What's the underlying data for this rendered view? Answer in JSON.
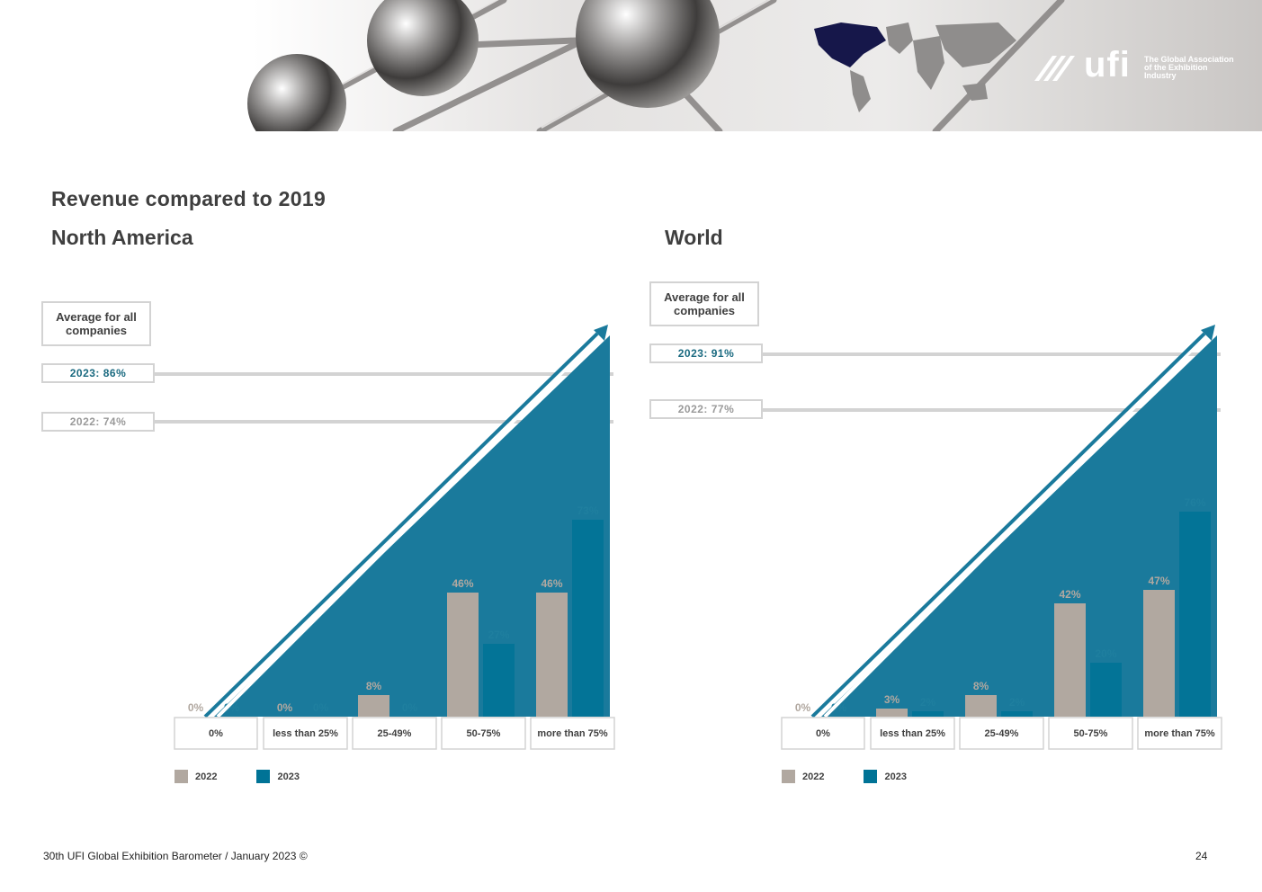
{
  "branding": {
    "logo_word": "ufi",
    "logo_tagline": "The Global Association of the Exhibition Industry"
  },
  "page": {
    "title": "Revenue compared to 2019",
    "footer": "30th UFI Global Exhibition Barometer / January 2023 ©",
    "page_number": "24"
  },
  "colors": {
    "series_2022": "#b1a8a0",
    "series_2023": "#007396",
    "triangle": "#1a7a9c"
  },
  "panels": [
    {
      "title": "North America",
      "average_label": "Average for all companies",
      "avg_2023_label": "2023: 86%",
      "avg_2022_label": "2022: 74%"
    },
    {
      "title": "World",
      "average_label": "Average for all companies",
      "avg_2023_label": "2023: 91%",
      "avg_2022_label": "2022: 77%"
    }
  ],
  "chart_data": [
    {
      "type": "bar",
      "title": "North America",
      "categories": [
        "0%",
        "less than 25%",
        "25-49%",
        "50-75%",
        "more than 75%"
      ],
      "series": [
        {
          "name": "2022",
          "values": [
            0,
            0,
            8,
            46,
            46
          ]
        },
        {
          "name": "2023",
          "values": [
            0,
            0,
            0,
            27,
            73
          ]
        }
      ],
      "ylim": [
        0,
        100
      ],
      "legend": "bottom-left",
      "grid": false
    },
    {
      "type": "bar",
      "title": "World",
      "categories": [
        "0%",
        "less than 25%",
        "25-49%",
        "50-75%",
        "more than 75%"
      ],
      "series": [
        {
          "name": "2022",
          "values": [
            0,
            3,
            8,
            42,
            47
          ]
        },
        {
          "name": "2023",
          "values": [
            0,
            2,
            2,
            20,
            76
          ]
        }
      ],
      "ylim": [
        0,
        100
      ],
      "legend": "bottom-left",
      "grid": false
    }
  ]
}
